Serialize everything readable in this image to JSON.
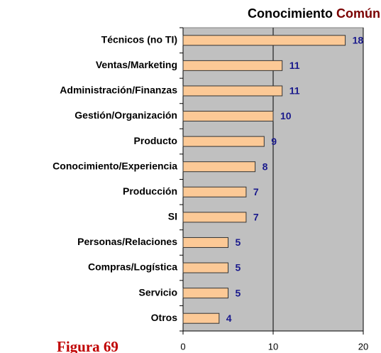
{
  "chart_data": {
    "type": "bar",
    "orientation": "horizontal",
    "title": [
      "Conocimiento",
      "Común"
    ],
    "title_colors": [
      "#000000",
      "#7a0000"
    ],
    "annotations": [
      "Figura 69"
    ],
    "categories": [
      "Técnicos (no TI)",
      "Ventas/Marketing",
      "Administración/Finanzas",
      "Gestión/Organización",
      "Producto",
      "Conocimiento/Experiencia",
      "Producción",
      "SI",
      "Personas/Relaciones",
      "Compras/Logística",
      "Servicio",
      "Otros"
    ],
    "values": [
      18,
      11,
      11,
      10,
      9,
      8,
      7,
      7,
      5,
      5,
      5,
      4
    ],
    "color": "#fcc996",
    "edge_color": "#333333",
    "plot_background": "#c0c0c0",
    "xlim": [
      0,
      20
    ],
    "xticks": [
      0,
      10,
      20
    ],
    "grid": true
  }
}
